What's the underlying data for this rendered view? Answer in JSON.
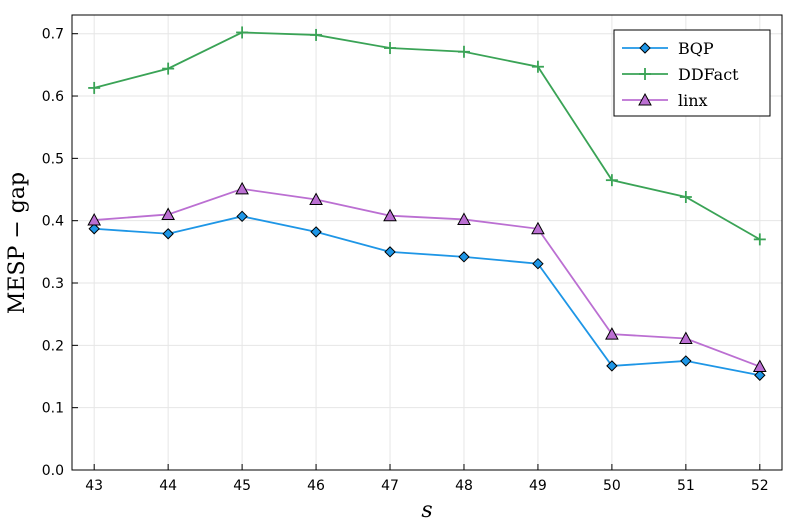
{
  "chart_data": {
    "type": "line",
    "title": "",
    "xlabel": "s",
    "ylabel": "MESP − gap",
    "x": [
      43,
      44,
      45,
      46,
      47,
      48,
      49,
      50,
      51,
      52
    ],
    "ylim": [
      0.0,
      0.73
    ],
    "yticks": [
      0.0,
      0.1,
      0.2,
      0.3,
      0.4,
      0.5,
      0.6,
      0.7
    ],
    "ytick_labels": [
      "0.0",
      "0.1",
      "0.2",
      "0.3",
      "0.4",
      "0.5",
      "0.6",
      "0.7"
    ],
    "xtick_labels": [
      "43",
      "44",
      "45",
      "46",
      "47",
      "48",
      "49",
      "50",
      "51",
      "52"
    ],
    "grid": true,
    "legend_position": "top-right",
    "series": [
      {
        "name": "BQP",
        "color": "#1e96e6",
        "marker": "diamond",
        "values": [
          0.387,
          0.379,
          0.407,
          0.382,
          0.35,
          0.342,
          0.331,
          0.167,
          0.175,
          0.152
        ]
      },
      {
        "name": "DDFact",
        "color": "#3aa356",
        "marker": "plus",
        "values": [
          0.613,
          0.644,
          0.702,
          0.698,
          0.677,
          0.671,
          0.647,
          0.465,
          0.438,
          0.37
        ]
      },
      {
        "name": "linx",
        "color": "#bb6fd2",
        "marker": "triangle",
        "values": [
          0.401,
          0.41,
          0.451,
          0.434,
          0.408,
          0.402,
          0.387,
          0.218,
          0.211,
          0.166
        ]
      }
    ]
  }
}
